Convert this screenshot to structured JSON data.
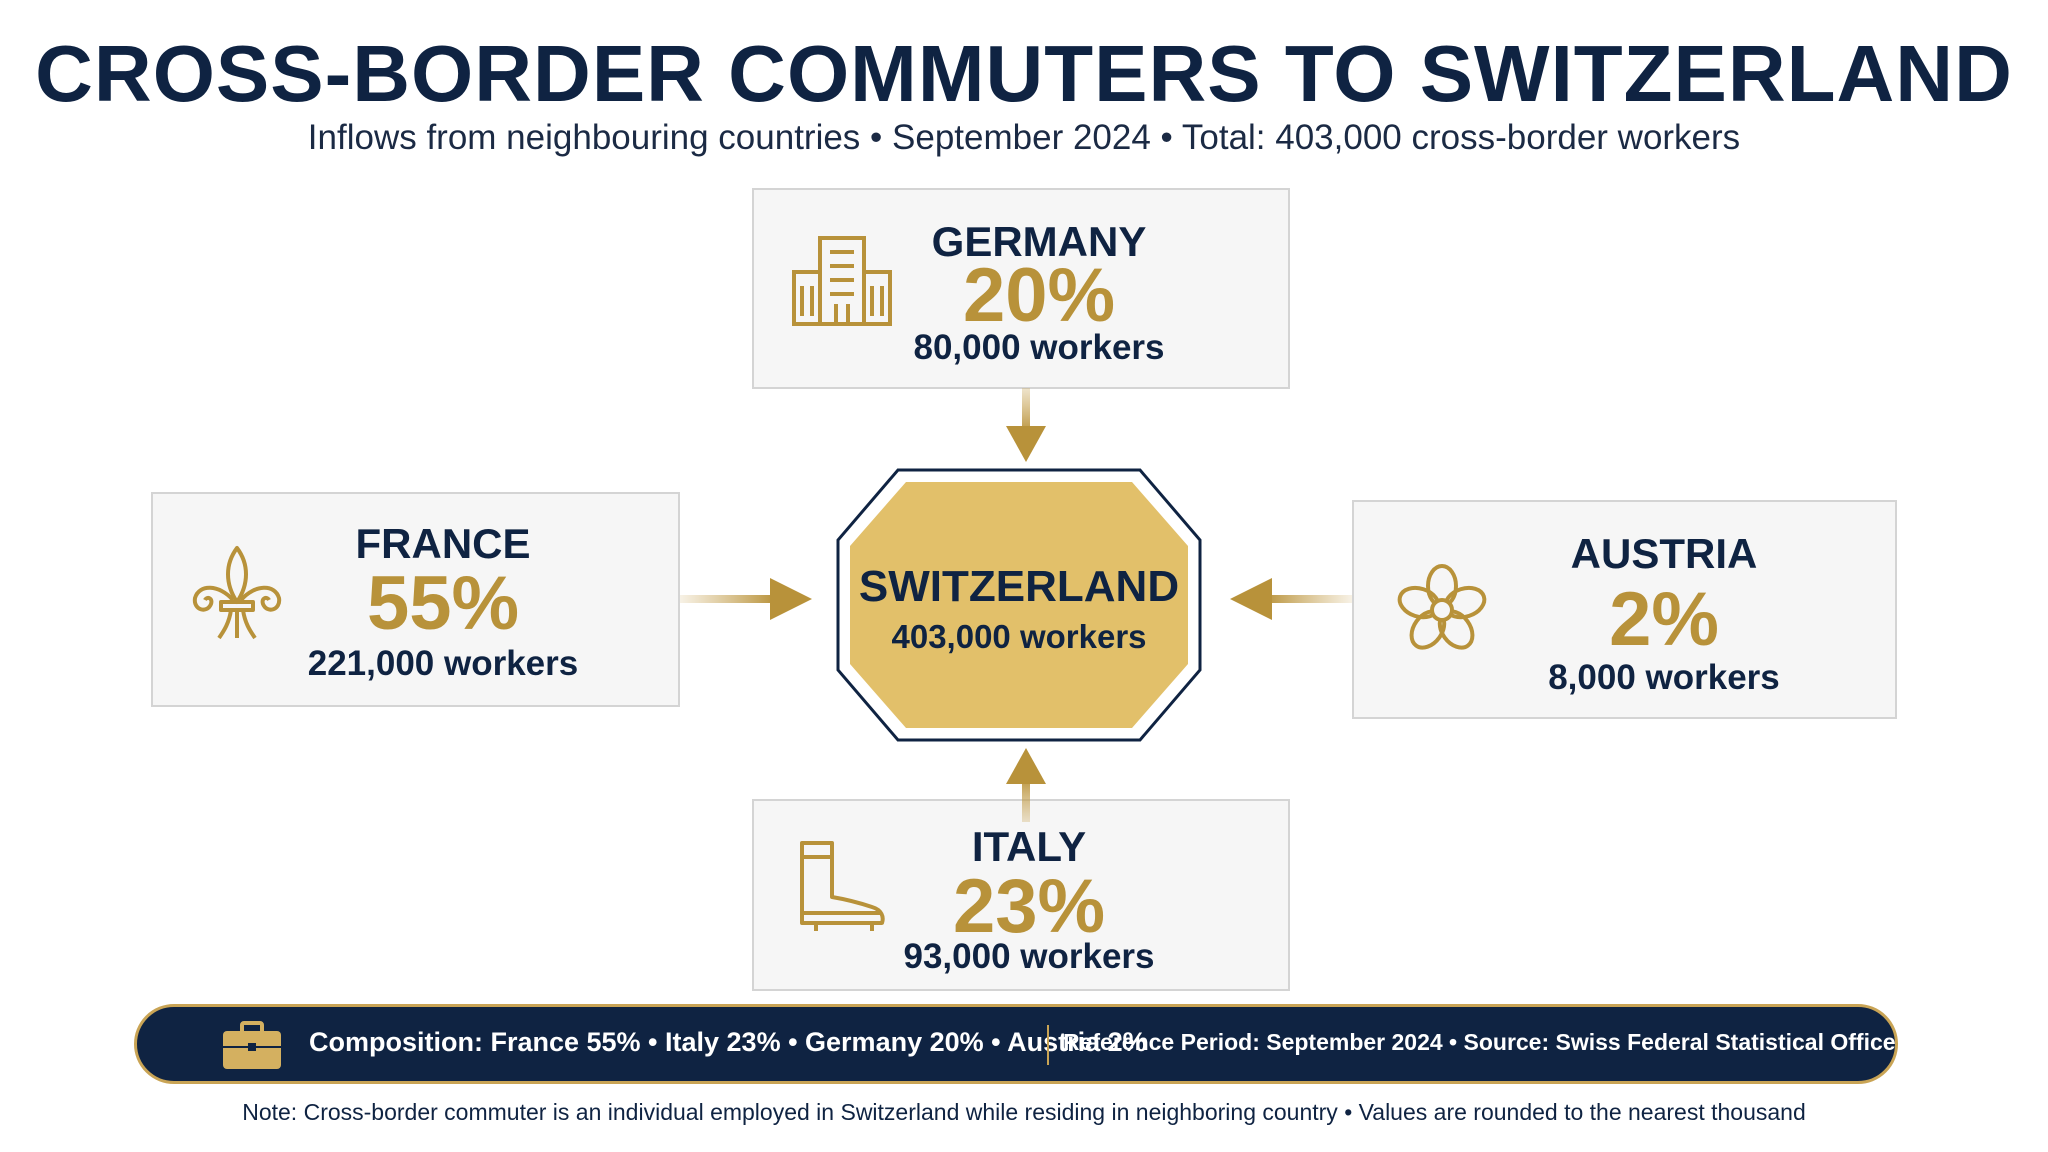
{
  "header": {
    "title": "CROSS-BORDER COMMUTERS TO SWITZERLAND",
    "subtitle": "Inflows from neighbouring countries • September 2024 • Total: 403,000 cross-border workers"
  },
  "hub": {
    "name": "SWITZERLAND",
    "workers": "403,000 workers"
  },
  "countries": [
    {
      "name": "GERMANY",
      "pct": "20%",
      "workers": "80,000 workers",
      "icon": "building-icon"
    },
    {
      "name": "FRANCE",
      "pct": "55%",
      "workers": "221,000 workers",
      "icon": "fleur-de-lis-icon"
    },
    {
      "name": "AUSTRIA",
      "pct": "2%",
      "workers": "8,000 workers",
      "icon": "edelweiss-flower-icon"
    },
    {
      "name": "ITALY",
      "pct": "23%",
      "workers": "93,000 workers",
      "icon": "boot-icon"
    }
  ],
  "footer_bar": {
    "composition": "Composition: France 55% • Italy 23% • Germany 20% • Austria 2%",
    "reference": "Reference Period: September 2024 • Source: Swiss Federal Statistical Office (BFS)",
    "icon": "briefcase-icon"
  },
  "note": "Note: Cross-border commuter is an individual employed in Switzerland while residing in neighboring country • Values are rounded to the nearest thousand",
  "colors": {
    "navy": "#0f2342",
    "gold": "#b8923a",
    "hub_fill": "#e2c06a",
    "card_bg": "#f6f6f6"
  }
}
